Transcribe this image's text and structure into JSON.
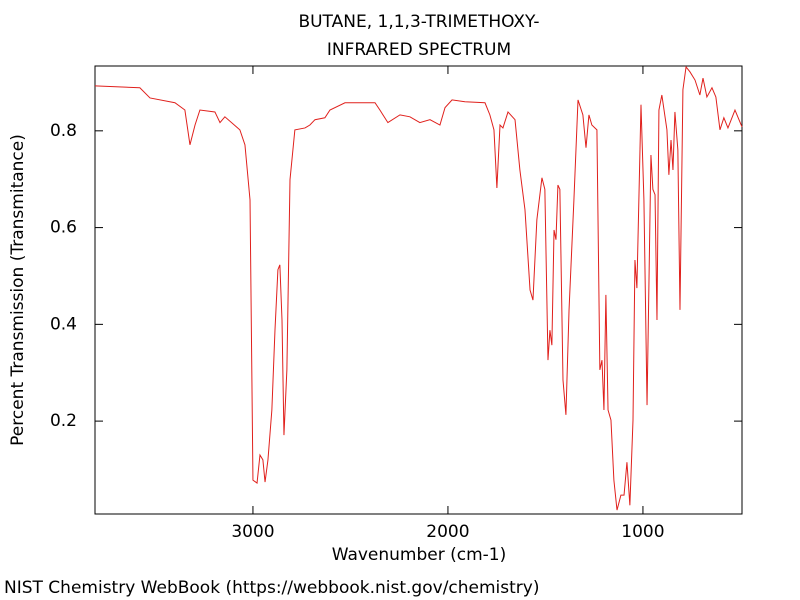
{
  "chart_data": {
    "type": "line",
    "title": "BUTANE, 1,1,3-TRIMETHOXY-",
    "subtitle": "INFRARED SPECTRUM",
    "x_label": "Wavenumber (cm-1)",
    "y_label": "Percent Transmission (Transmitance)",
    "footer": "NIST Chemistry WebBook (https://webbook.nist.gov/chemistry)",
    "color": "#e0201c",
    "xlim": [
      3810,
      492
    ],
    "ylim": [
      0.008,
      0.934
    ],
    "xticks": [
      3000,
      2000,
      1000
    ],
    "yticks": [
      0.2,
      0.4,
      0.6,
      0.8
    ],
    "x": [
      3810,
      3580,
      3528,
      3400,
      3349,
      3323,
      3297,
      3272,
      3195,
      3169,
      3144,
      3067,
      3041,
      3015,
      3000,
      2979,
      2964,
      2949,
      2938,
      2923,
      2903,
      2887,
      2872,
      2862,
      2851,
      2841,
      2826,
      2810,
      2785,
      2733,
      2708,
      2682,
      2631,
      2605,
      2528,
      2374,
      2349,
      2308,
      2246,
      2195,
      2144,
      2092,
      2041,
      2015,
      1979,
      1913,
      1810,
      1785,
      1764,
      1749,
      1733,
      1718,
      1692,
      1656,
      1631,
      1605,
      1579,
      1564,
      1544,
      1518,
      1503,
      1487,
      1477,
      1467,
      1456,
      1446,
      1436,
      1426,
      1410,
      1395,
      1379,
      1354,
      1333,
      1308,
      1292,
      1277,
      1262,
      1236,
      1221,
      1210,
      1200,
      1190,
      1179,
      1164,
      1149,
      1133,
      1113,
      1097,
      1082,
      1067,
      1051,
      1041,
      1031,
      1010,
      995,
      979,
      959,
      949,
      938,
      928,
      918,
      903,
      877,
      867,
      856,
      846,
      836,
      821,
      810,
      795,
      779,
      759,
      733,
      708,
      692,
      672,
      646,
      626,
      605,
      585,
      564,
      528,
      492
    ],
    "values": [
      0.893,
      0.889,
      0.868,
      0.858,
      0.843,
      0.771,
      0.812,
      0.843,
      0.839,
      0.817,
      0.829,
      0.802,
      0.771,
      0.657,
      0.078,
      0.072,
      0.13,
      0.12,
      0.074,
      0.12,
      0.223,
      0.388,
      0.513,
      0.523,
      0.409,
      0.171,
      0.306,
      0.699,
      0.802,
      0.806,
      0.812,
      0.823,
      0.827,
      0.843,
      0.858,
      0.858,
      0.843,
      0.817,
      0.833,
      0.829,
      0.817,
      0.823,
      0.812,
      0.848,
      0.864,
      0.86,
      0.858,
      0.833,
      0.802,
      0.682,
      0.812,
      0.806,
      0.839,
      0.823,
      0.719,
      0.637,
      0.471,
      0.45,
      0.616,
      0.703,
      0.679,
      0.326,
      0.388,
      0.357,
      0.595,
      0.575,
      0.688,
      0.679,
      0.285,
      0.213,
      0.43,
      0.657,
      0.864,
      0.833,
      0.765,
      0.833,
      0.812,
      0.802,
      0.306,
      0.326,
      0.223,
      0.461,
      0.223,
      0.202,
      0.078,
      0.016,
      0.047,
      0.047,
      0.115,
      0.026,
      0.202,
      0.533,
      0.475,
      0.854,
      0.657,
      0.233,
      0.75,
      0.679,
      0.668,
      0.409,
      0.843,
      0.874,
      0.802,
      0.709,
      0.781,
      0.719,
      0.839,
      0.761,
      0.43,
      0.885,
      0.932,
      0.922,
      0.905,
      0.874,
      0.909,
      0.87,
      0.889,
      0.87,
      0.802,
      0.827,
      0.806,
      0.843,
      0.808
    ]
  }
}
